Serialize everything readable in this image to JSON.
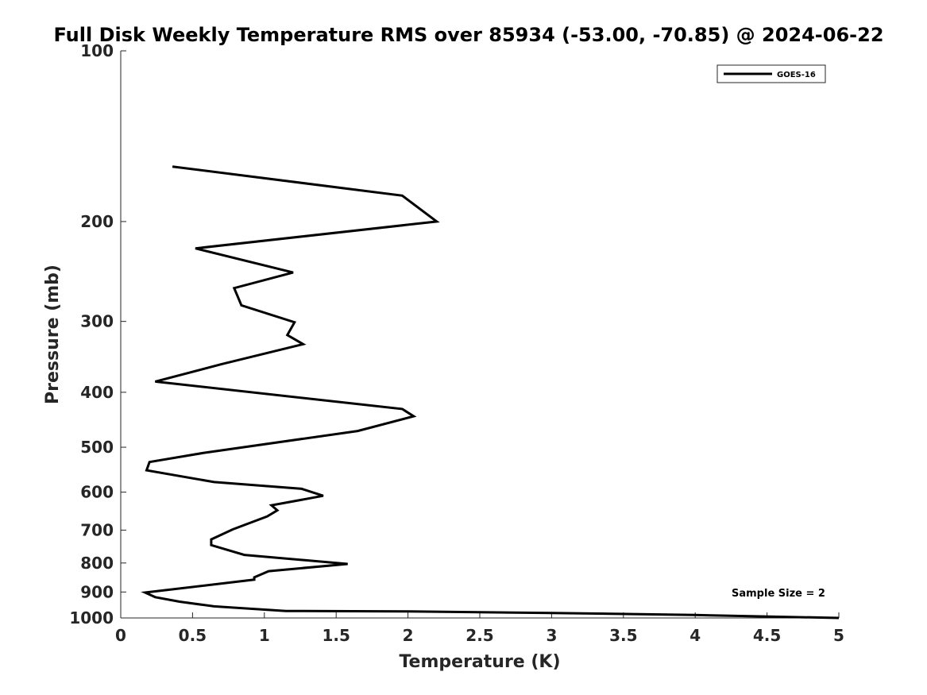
{
  "chart_data": {
    "type": "line",
    "title": "Full Disk Weekly Temperature RMS over 85934 (-53.00, -70.85) @ 2024-06-22",
    "xlabel": "Temperature (K)",
    "ylabel": "Pressure (mb)",
    "xlim": [
      0,
      5
    ],
    "ylim": [
      1000,
      100
    ],
    "y_scale": "log",
    "x_ticks": [
      "0",
      "0.5",
      "1",
      "1.5",
      "2",
      "2.5",
      "3",
      "3.5",
      "4",
      "4.5",
      "5"
    ],
    "x_tick_values": [
      0,
      0.5,
      1,
      1.5,
      2,
      2.5,
      3,
      3.5,
      4,
      4.5,
      5
    ],
    "y_ticks": [
      "100",
      "200",
      "300",
      "400",
      "500",
      "600",
      "700",
      "800",
      "900",
      "1000"
    ],
    "y_tick_values": [
      100,
      200,
      300,
      400,
      500,
      600,
      700,
      800,
      900,
      1000
    ],
    "grid": false,
    "legend": {
      "position": "top-right",
      "entries": [
        "GOES-16"
      ]
    },
    "annotation": "Sample Size = 2",
    "line_color": "#000000",
    "series": [
      {
        "name": "GOES-16",
        "points": [
          [
            0.36,
            160
          ],
          [
            1.96,
            180
          ],
          [
            2.2,
            200
          ],
          [
            0.52,
            223
          ],
          [
            1.2,
            246
          ],
          [
            0.79,
            262
          ],
          [
            0.84,
            281
          ],
          [
            1.21,
            301
          ],
          [
            1.16,
            317
          ],
          [
            1.27,
            329
          ],
          [
            0.7,
            357
          ],
          [
            0.24,
            383
          ],
          [
            1.96,
            428
          ],
          [
            2.04,
            441
          ],
          [
            1.65,
            468
          ],
          [
            0.57,
            512
          ],
          [
            0.2,
            531
          ],
          [
            0.18,
            549
          ],
          [
            0.65,
            576
          ],
          [
            1.26,
            592
          ],
          [
            1.41,
            609
          ],
          [
            1.05,
            633
          ],
          [
            1.09,
            646
          ],
          [
            1.02,
            662
          ],
          [
            0.78,
            698
          ],
          [
            0.63,
            727
          ],
          [
            0.63,
            744
          ],
          [
            0.86,
            774
          ],
          [
            1.58,
            803
          ],
          [
            1.03,
            827
          ],
          [
            0.93,
            848
          ],
          [
            0.93,
            856
          ],
          [
            0.17,
            902
          ],
          [
            0.24,
            919
          ],
          [
            0.41,
            936
          ],
          [
            0.65,
            954
          ],
          [
            1.15,
            972
          ],
          [
            2.0,
            974
          ],
          [
            3.0,
            980
          ],
          [
            4.0,
            988
          ],
          [
            5.0,
            1000
          ]
        ]
      }
    ]
  }
}
